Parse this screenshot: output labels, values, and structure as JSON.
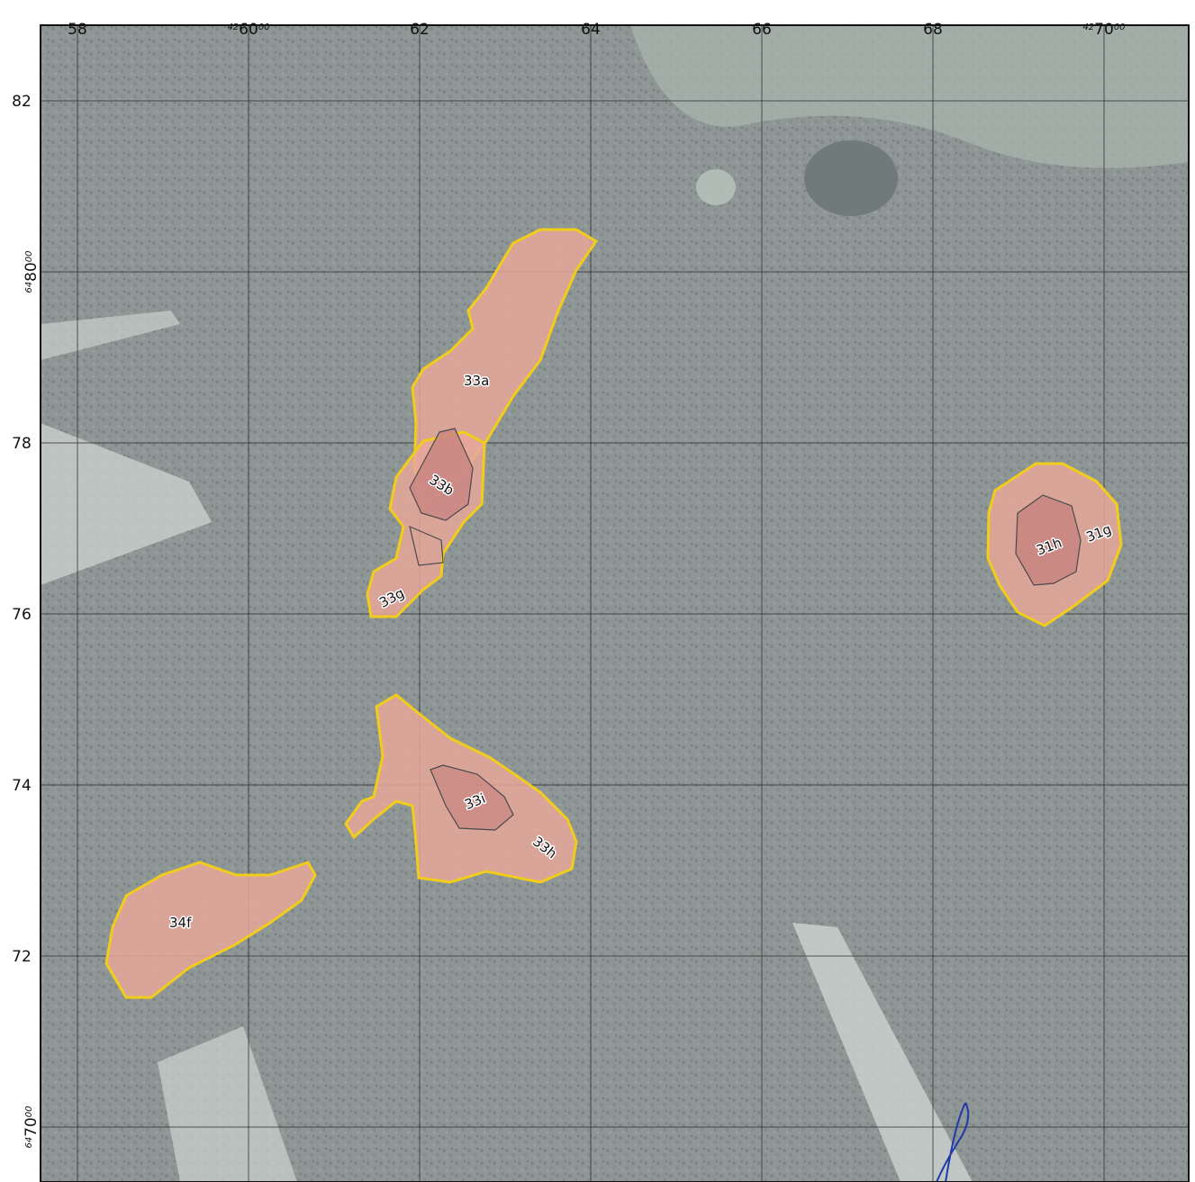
{
  "map": {
    "grid": {
      "x_ticks": [
        {
          "value": 58,
          "label": "58"
        },
        {
          "value": 60,
          "prefix": "42",
          "label": "60",
          "suffix": "00"
        },
        {
          "value": 62,
          "label": "62"
        },
        {
          "value": 64,
          "label": "64"
        },
        {
          "value": 66,
          "label": "66"
        },
        {
          "value": 68,
          "label": "68"
        },
        {
          "value": 70,
          "prefix": "42",
          "label": "70",
          "suffix": "00"
        }
      ],
      "y_ticks": [
        {
          "value": 82,
          "label": "82"
        },
        {
          "value": 80,
          "prefix": "64",
          "label": "80",
          "suffix": "00"
        },
        {
          "value": 78,
          "label": "78"
        },
        {
          "value": 76,
          "label": "76"
        },
        {
          "value": 74,
          "label": "74"
        },
        {
          "value": 72,
          "label": "72"
        },
        {
          "value": 70,
          "prefix": "64",
          "label": "70",
          "suffix": "00"
        }
      ]
    },
    "colors": {
      "imagery_base": "#8f9796",
      "grid_line": "#2b2b2b",
      "parcel_fill": "#e8a79a",
      "parcel_outline": "#f2cc1b",
      "sub_parcel_fill": "#c98682",
      "sub_parcel_outline": "#4a4a4a",
      "water": "#6f7a79",
      "clearing": "#c9cfcc",
      "route": "#1e3aa8"
    },
    "parcels": [
      {
        "id": "33a",
        "label": "33a"
      },
      {
        "id": "33b",
        "label": "33b"
      },
      {
        "id": "33g",
        "label": "33g"
      },
      {
        "id": "33i",
        "label": "33i"
      },
      {
        "id": "33h",
        "label": "33h"
      },
      {
        "id": "34f",
        "label": "34f"
      },
      {
        "id": "31h",
        "label": "31h"
      },
      {
        "id": "31g",
        "label": "31g"
      }
    ],
    "icons": {
      "route_line": "route-line-icon"
    }
  }
}
